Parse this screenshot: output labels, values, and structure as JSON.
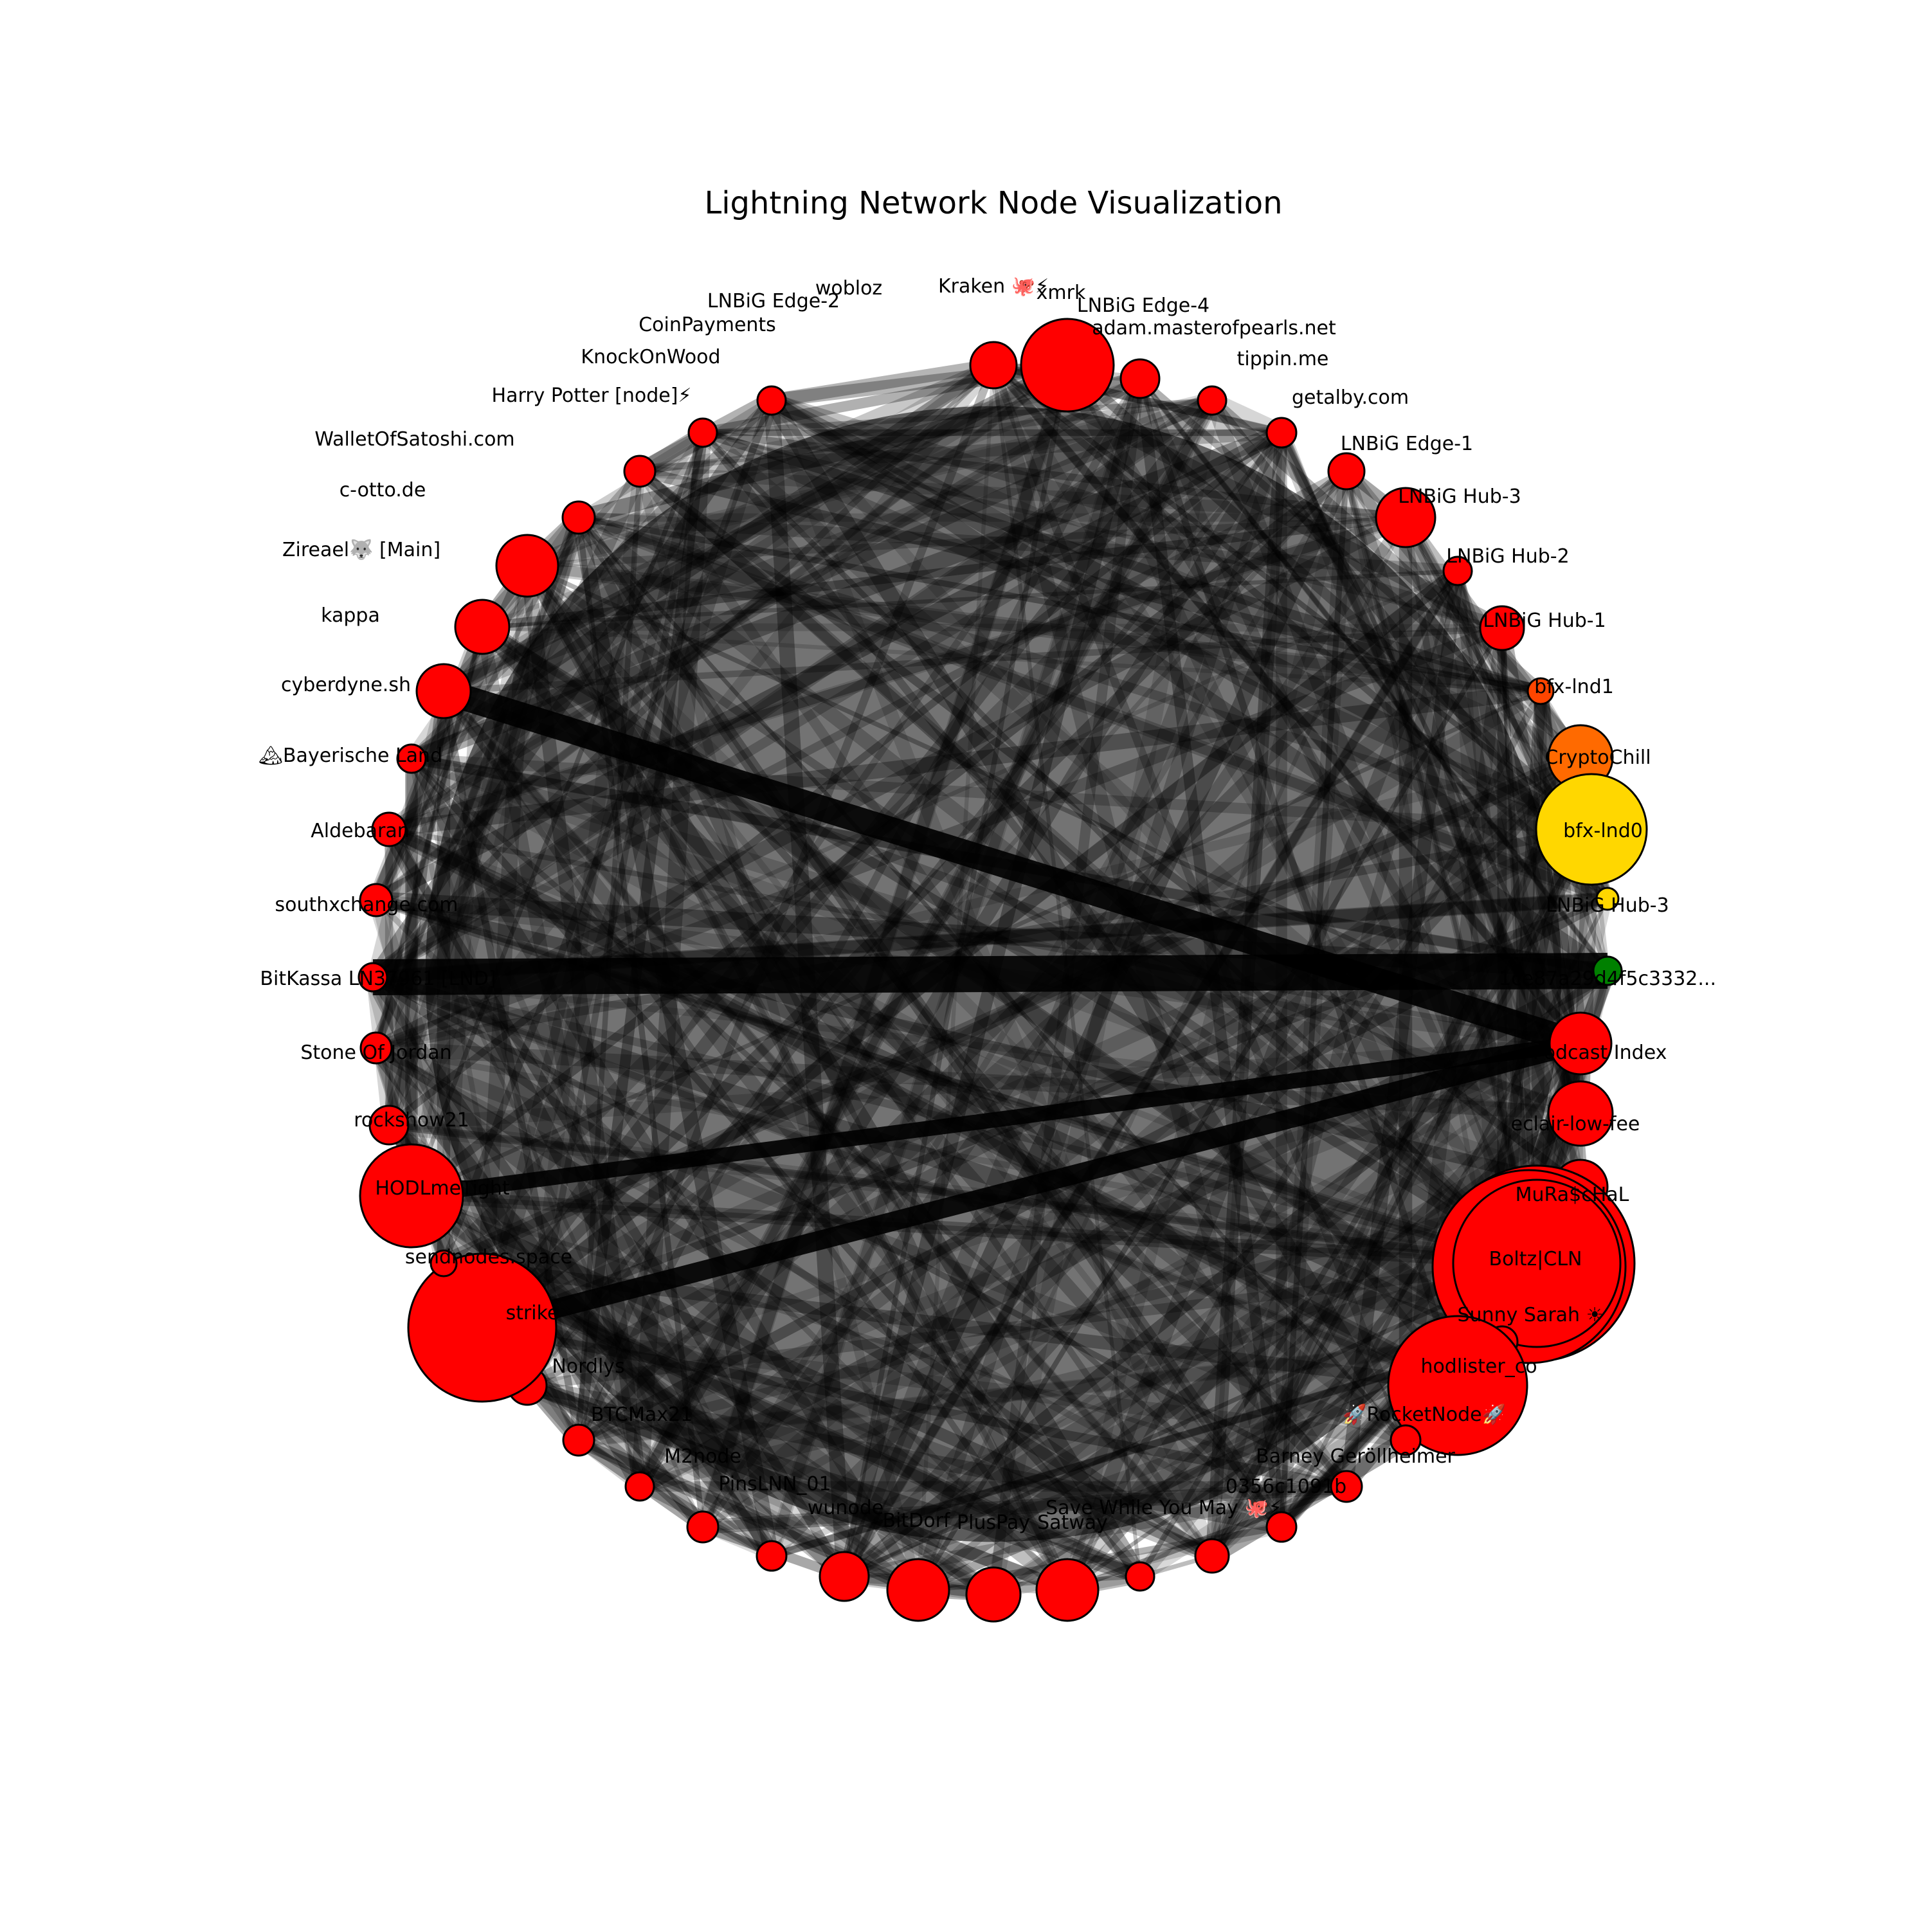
{
  "title": "Lightning Network Node Visualization",
  "colors": {
    "red": "#ff0000",
    "orange_red": "#ff4500",
    "orange": "#ff6a00",
    "gold": "#ffd700",
    "green": "#008000",
    "edge": "#000000"
  },
  "nodes": [
    {
      "label": "Kraken 🐙⚡",
      "color": "red",
      "size": 3
    },
    {
      "label": "xmrk",
      "color": "red",
      "size": 10
    },
    {
      "label": "LNBiG Edge-4",
      "color": "red",
      "size": 4
    },
    {
      "label": "adam.masterofpearls.net",
      "color": "red",
      "size": 2
    },
    {
      "label": "tippin.me",
      "color": "red",
      "size": 3
    },
    {
      "label": "getalby.com",
      "color": "red",
      "size": 5
    },
    {
      "label": "LNBiG Edge-1",
      "color": "red",
      "size": 2
    },
    {
      "label": "LNBiG Hub-3",
      "color": "red",
      "size": 3
    },
    {
      "label": "LNBiG Hub-2",
      "color": "red",
      "size": 1
    },
    {
      "label": "LNBiG Hub-1",
      "color": "orange_red",
      "size": 4
    },
    {
      "label": "bfx-lnd1",
      "color": "orange",
      "size": 12
    },
    {
      "label": "CryptoChill",
      "color": "gold",
      "size": 1
    },
    {
      "label": "bfx-lnd0",
      "color": "gold",
      "size": 2
    },
    {
      "label": "LNBiG Hub-3",
      "color": "green",
      "size": 5
    },
    {
      "label": "1ce87a29d4f5c3332...",
      "color": "red",
      "size": 5
    },
    {
      "label": "Podcast Index",
      "color": "red",
      "size": 4
    },
    {
      "label": "eclair-low-fee",
      "color": "red",
      "size": 1
    },
    {
      "label": "MuRa$cHaL",
      "color": "red",
      "size": 27
    },
    {
      "label": "Boltz|CLN",
      "color": "red",
      "size": 27
    },
    {
      "label": "Sunny Sarah ☀",
      "color": "red",
      "size": 1
    },
    {
      "label": "hodlister_co",
      "color": "red",
      "size": 18
    },
    {
      "label": "🚀RocketNode🚀",
      "color": "red",
      "size": 1
    },
    {
      "label": "Barney Geröllheimer",
      "color": "red",
      "size": 1
    },
    {
      "label": "0356c1091b",
      "color": "red",
      "size": 1
    },
    {
      "label": "Save While You May 🐙⚡",
      "color": "red",
      "size": 1
    },
    {
      "label": "Satway",
      "color": "red",
      "size": 1
    },
    {
      "label": "PlusPay",
      "color": "red",
      "size": 1
    },
    {
      "label": "BitDorf",
      "color": "red",
      "size": 1
    },
    {
      "label": "wunode",
      "color": "red",
      "size": 1
    },
    {
      "label": "PinsLNN_01",
      "color": "red",
      "size": 1
    },
    {
      "label": "M2node",
      "color": "red",
      "size": 1
    },
    {
      "label": "BTCMax21",
      "color": "red",
      "size": 1
    },
    {
      "label": "Nordlys",
      "color": "red",
      "size": 1
    },
    {
      "label": "strike",
      "color": "red",
      "size": 1
    },
    {
      "label": "sendnodes.space",
      "color": "red",
      "size": 1
    },
    {
      "label": "HODLmeTight",
      "color": "red",
      "size": 1
    },
    {
      "label": "rockshow21",
      "color": "red",
      "size": 1
    },
    {
      "label": "Stone Of Jordan",
      "color": "red",
      "size": 1
    },
    {
      "label": "BitKassa LN37961 [LND]",
      "color": "red",
      "size": 1
    },
    {
      "label": "southxchange.com",
      "color": "red",
      "size": 1
    },
    {
      "label": "Aldebaran",
      "color": "red",
      "size": 1
    },
    {
      "label": "🏔Bayerische Land",
      "color": "red",
      "size": 1
    },
    {
      "label": "cyberdyne.sh",
      "color": "red",
      "size": 1
    },
    {
      "label": "kappa",
      "color": "red",
      "size": 1
    },
    {
      "label": "Zireael🐺 [Main]",
      "color": "red",
      "size": 1
    },
    {
      "label": "c-otto.de",
      "color": "red",
      "size": 1
    },
    {
      "label": "WalletOfSatoshi.com",
      "color": "red",
      "size": 1
    },
    {
      "label": "Harry Potter [node]⚡",
      "color": "red",
      "size": 1
    },
    {
      "label": "KnockOnWood",
      "color": "red",
      "size": 1
    },
    {
      "label": "CoinPayments",
      "color": "red",
      "size": 1
    },
    {
      "label": "LNBiG Edge-2",
      "color": "red",
      "size": 1
    },
    {
      "label": "wobloz",
      "color": "red",
      "size": 1
    }
  ]
}
